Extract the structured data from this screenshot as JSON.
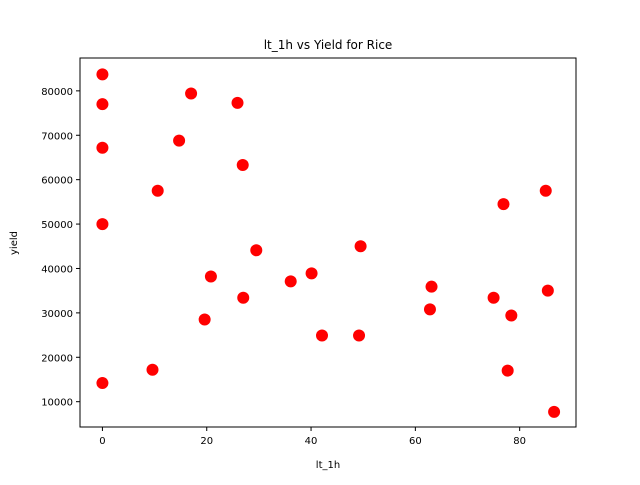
{
  "chart_data": {
    "type": "scatter",
    "title": "lt_1h vs Yield for Rice",
    "xlabel": "lt_1h",
    "ylabel": "yield",
    "xlim": [
      -4.3,
      90.8
    ],
    "ylim": [
      4300,
      87400
    ],
    "xticks": [
      0,
      20,
      40,
      60,
      80
    ],
    "xtick_labels": [
      "0",
      "20",
      "40",
      "60",
      "80"
    ],
    "yticks": [
      10000,
      20000,
      30000,
      40000,
      50000,
      60000,
      70000,
      80000
    ],
    "ytick_labels": [
      "10000",
      "20000",
      "30000",
      "40000",
      "50000",
      "60000",
      "70000",
      "80000"
    ],
    "grid": false,
    "color": "#ff0000",
    "points": [
      {
        "x": 0,
        "y": 83700
      },
      {
        "x": 0,
        "y": 77000
      },
      {
        "x": 0,
        "y": 67200
      },
      {
        "x": 0,
        "y": 50000
      },
      {
        "x": 0,
        "y": 14200
      },
      {
        "x": 9.6,
        "y": 17200
      },
      {
        "x": 10.6,
        "y": 57500
      },
      {
        "x": 14.7,
        "y": 68800
      },
      {
        "x": 17,
        "y": 79400
      },
      {
        "x": 19.6,
        "y": 28500
      },
      {
        "x": 20.8,
        "y": 38200
      },
      {
        "x": 25.9,
        "y": 77300
      },
      {
        "x": 26.9,
        "y": 63300
      },
      {
        "x": 27,
        "y": 33400
      },
      {
        "x": 29.5,
        "y": 44100
      },
      {
        "x": 36.1,
        "y": 37100
      },
      {
        "x": 40.1,
        "y": 38900
      },
      {
        "x": 42.1,
        "y": 24900
      },
      {
        "x": 49.2,
        "y": 24900
      },
      {
        "x": 49.5,
        "y": 45000
      },
      {
        "x": 62.8,
        "y": 30800
      },
      {
        "x": 63.1,
        "y": 35900
      },
      {
        "x": 75,
        "y": 33400
      },
      {
        "x": 76.9,
        "y": 54500
      },
      {
        "x": 77.7,
        "y": 17000
      },
      {
        "x": 78.4,
        "y": 29400
      },
      {
        "x": 85,
        "y": 57500
      },
      {
        "x": 85.4,
        "y": 35000
      },
      {
        "x": 86.6,
        "y": 7700
      }
    ]
  }
}
